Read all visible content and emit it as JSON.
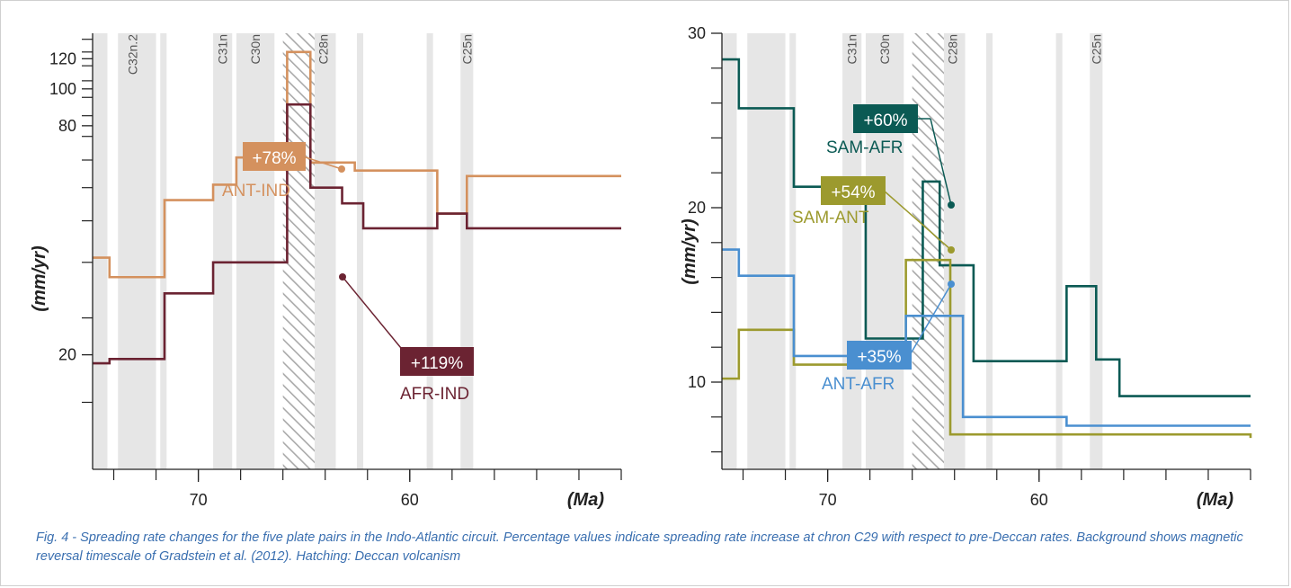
{
  "caption": "Fig. 4 - Spreading rate changes for the five plate pairs in the Indo-Atlantic circuit. Percentage values indicate spreading rate increase at chron C29 with respect to pre-Deccan rates. Background shows magnetic reversal timescale of Gradstein et al. (2012). Hatching: Deccan volcanism",
  "colors": {
    "ANT-IND": "#d4915e",
    "AFR-IND": "#6b2332",
    "SAM-AFR": "#0b5a54",
    "SAM-ANT": "#9c9a2e",
    "ANT-AFR": "#4a8fd0",
    "chron_band": "#e6e6e6",
    "hatch": "#a9a9a9"
  },
  "chart_data": [
    {
      "type": "line",
      "step": true,
      "xlabel": "(Ma)",
      "ylabel": "(mm/yr)",
      "x_reversed": true,
      "xlim": [
        75,
        50
      ],
      "x_ticks": [
        70,
        60
      ],
      "ylim": [
        10,
        140
      ],
      "y_scale": "log",
      "y_ticks": [
        20,
        80,
        100,
        120
      ],
      "grid": false,
      "legend": "labels on chart",
      "chron_labels": [
        "C32n.2",
        "C31n",
        "C30n",
        "C28n",
        "C25n"
      ],
      "series": [
        {
          "name": "ANT-IND",
          "annotation": "+78%",
          "x": [
            75,
            74.2,
            71.6,
            69.3,
            68.2,
            65.8,
            64.7,
            62.6,
            58.7,
            57.3,
            50
          ],
          "y": [
            36,
            32,
            51,
            56,
            66,
            125,
            64,
            61,
            47,
            59,
            59
          ]
        },
        {
          "name": "AFR-IND",
          "annotation": "+119%",
          "x": [
            75,
            74.2,
            71.6,
            69.3,
            65.8,
            64.7,
            63.2,
            62.2,
            58.7,
            57.3,
            50
          ],
          "y": [
            19,
            19.5,
            29,
            35,
            91,
            55,
            50,
            43,
            47,
            43,
            43
          ]
        }
      ]
    },
    {
      "type": "line",
      "step": true,
      "xlabel": "(Ma)",
      "ylabel": "(mm/yr)",
      "x_reversed": true,
      "xlim": [
        75,
        50
      ],
      "x_ticks": [
        70,
        60
      ],
      "ylim": [
        5,
        30
      ],
      "y_scale": "linear",
      "y_ticks": [
        10,
        20,
        30
      ],
      "grid": false,
      "legend": "labels on chart",
      "chron_labels": [
        "C31n",
        "C30n",
        "C28n",
        "C25n"
      ],
      "series": [
        {
          "name": "SAM-AFR",
          "annotation": "+60%",
          "x": [
            75,
            74.2,
            71.6,
            68.2,
            66.3,
            65.5,
            64.7,
            63.1,
            58.7,
            57.3,
            56.2,
            50
          ],
          "y": [
            28.5,
            25.7,
            21.2,
            12.5,
            12.5,
            21.5,
            16.7,
            11.2,
            15.5,
            11.3,
            9.2,
            9.2
          ]
        },
        {
          "name": "SAM-ANT",
          "annotation": "+54%",
          "x": [
            75,
            74.2,
            71.6,
            66.3,
            64.2,
            50
          ],
          "y": [
            10.2,
            13,
            11,
            17,
            7,
            6.8
          ]
        },
        {
          "name": "ANT-AFR",
          "annotation": "+35%",
          "x": [
            75,
            74.2,
            71.6,
            66.3,
            63.6,
            58.7,
            50
          ],
          "y": [
            17.6,
            16.1,
            11.5,
            13.8,
            8,
            7.5,
            7.5
          ]
        }
      ]
    }
  ]
}
